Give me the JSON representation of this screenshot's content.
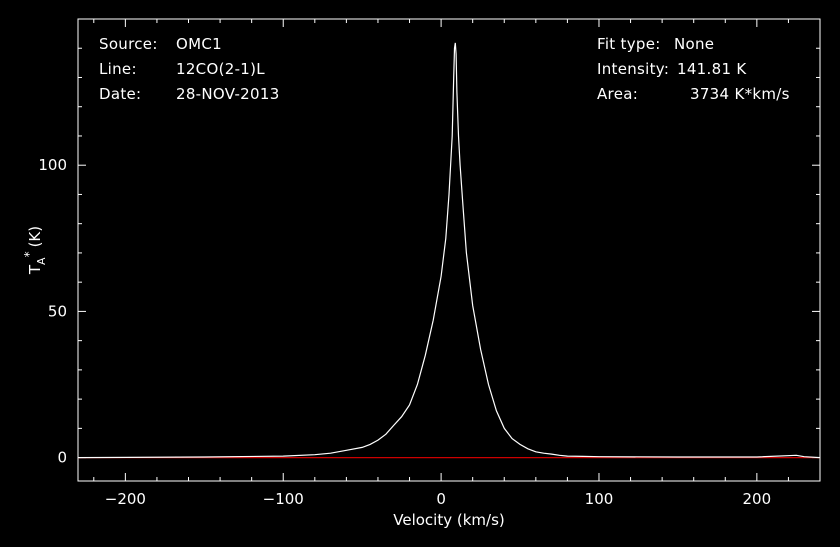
{
  "header": {
    "left": [
      {
        "label": "Source:",
        "value": "OMC1"
      },
      {
        "label": "Line:",
        "value": "12CO(2-1)L"
      },
      {
        "label": "Date:",
        "value": "28-NOV-2013"
      }
    ],
    "right": [
      {
        "label": "Fit type:",
        "value": "None"
      },
      {
        "label": "Intensity:",
        "value": "141.81 K"
      },
      {
        "label": "Area:",
        "value": "3734 K*km/s"
      }
    ]
  },
  "chart_data": {
    "type": "line",
    "title": "",
    "xlabel": "Velocity (km/s)",
    "ylabel_main": "T",
    "ylabel_sup": "*",
    "ylabel_sub": "A",
    "ylabel_unit": "(K)",
    "xlim": [
      -230,
      240
    ],
    "ylim": [
      -8,
      150
    ],
    "x_ticks": [
      -200,
      -100,
      0,
      100,
      200
    ],
    "x_tick_labels": [
      "−200",
      "−100",
      "0",
      "100",
      "200"
    ],
    "y_ticks": [
      0,
      50,
      100
    ],
    "y_tick_labels": [
      "0",
      "50",
      "100"
    ],
    "grid": false,
    "baseline": {
      "y": 0,
      "color": "#cc0000"
    },
    "series": [
      {
        "color": "#ffffff",
        "x": [
          -230,
          -150,
          -100,
          -80,
          -70,
          -60,
          -50,
          -45,
          -40,
          -35,
          -30,
          -25,
          -20,
          -15,
          -10,
          -5,
          0,
          3,
          5,
          7,
          8,
          8.5,
          9,
          9.5,
          10,
          11,
          12,
          14,
          16,
          20,
          25,
          30,
          35,
          40,
          45,
          50,
          55,
          60,
          65,
          70,
          75,
          80,
          90,
          100,
          150,
          200,
          225,
          230,
          240
        ],
        "y": [
          0,
          0.2,
          0.5,
          1,
          1.5,
          2.5,
          3.5,
          4.5,
          6,
          8,
          11,
          14,
          18,
          25,
          35,
          47,
          62,
          75,
          90,
          110,
          130,
          140,
          141.81,
          138,
          125,
          110,
          100,
          85,
          70,
          52,
          37,
          25,
          16,
          10,
          6.5,
          4.5,
          3,
          2,
          1.5,
          1.2,
          0.8,
          0.5,
          0.4,
          0.3,
          0.2,
          0.2,
          0.8,
          0.3,
          0
        ]
      }
    ]
  }
}
